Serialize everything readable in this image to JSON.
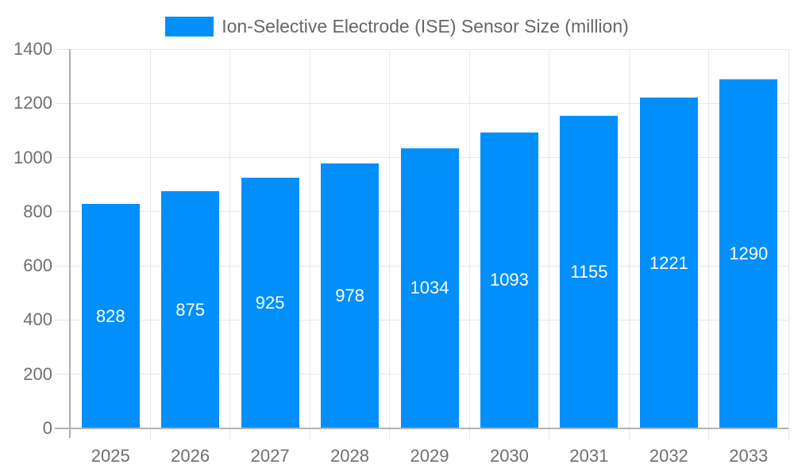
{
  "chart_data": {
    "type": "bar",
    "title": "",
    "legend": "Ion-Selective Electrode (ISE) Sensor Size (million)",
    "categories": [
      "2025",
      "2026",
      "2027",
      "2028",
      "2029",
      "2030",
      "2031",
      "2032",
      "2033"
    ],
    "values": [
      828,
      875,
      925,
      978,
      1034,
      1093,
      1155,
      1221,
      1290
    ],
    "xlabel": "",
    "ylabel": "",
    "ylim": [
      0,
      1400
    ],
    "yticks": [
      0,
      200,
      400,
      600,
      800,
      1000,
      1200,
      1400
    ],
    "grid": "on",
    "legend_position": "top-center",
    "value_labels": "inside-center"
  },
  "colors": {
    "bar": "#008FFB",
    "grid": "#e7e7e7",
    "axis": "#b0b0b0",
    "tick_label": "#6f6f6f",
    "legend_text": "#666666",
    "value_label": "#ffffff",
    "background": "#ffffff"
  }
}
